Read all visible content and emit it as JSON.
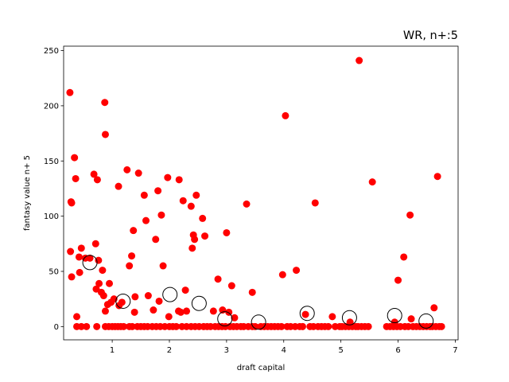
{
  "chart_data": {
    "type": "scatter",
    "title": "WR, n+:5",
    "xlabel": "draft capital",
    "ylabel": "fantasy value n+ 5",
    "xlim": [
      0.15,
      7.05
    ],
    "ylim": [
      -12,
      254
    ],
    "xticks": [
      1,
      2,
      3,
      4,
      5,
      6,
      7
    ],
    "yticks": [
      0,
      50,
      100,
      150,
      200,
      250
    ],
    "grid": false,
    "colors": {
      "points": "#ff0000",
      "means_stroke": "#000000"
    },
    "series": [
      {
        "role": "players",
        "points": [
          [
            0.26,
            212
          ],
          [
            0.28,
            113
          ],
          [
            0.29,
            112
          ],
          [
            0.27,
            68
          ],
          [
            0.29,
            45
          ],
          [
            0.34,
            153
          ],
          [
            0.36,
            134
          ],
          [
            0.38,
            9
          ],
          [
            0.42,
            63
          ],
          [
            0.43,
            49
          ],
          [
            0.46,
            71
          ],
          [
            0.53,
            62
          ],
          [
            0.61,
            62
          ],
          [
            0.68,
            138
          ],
          [
            0.71,
            75
          ],
          [
            0.74,
            133
          ],
          [
            0.76,
            60
          ],
          [
            0.77,
            39
          ],
          [
            0.72,
            34
          ],
          [
            0.81,
            31
          ],
          [
            0.83,
            51
          ],
          [
            0.85,
            28
          ],
          [
            0.87,
            203
          ],
          [
            0.88,
            174
          ],
          [
            0.88,
            14
          ],
          [
            0.92,
            20
          ],
          [
            0.95,
            39
          ],
          [
            0.98,
            22
          ],
          [
            1.03,
            25
          ],
          [
            1.11,
            127
          ],
          [
            1.12,
            19
          ],
          [
            1.17,
            22
          ],
          [
            1.26,
            142
          ],
          [
            1.3,
            55
          ],
          [
            1.34,
            64
          ],
          [
            1.37,
            87
          ],
          [
            1.39,
            13
          ],
          [
            1.4,
            27
          ],
          [
            1.46,
            139
          ],
          [
            1.56,
            119
          ],
          [
            1.59,
            96
          ],
          [
            1.63,
            28
          ],
          [
            1.72,
            15
          ],
          [
            1.76,
            79
          ],
          [
            1.8,
            123
          ],
          [
            1.82,
            23
          ],
          [
            1.86,
            101
          ],
          [
            1.89,
            55
          ],
          [
            1.97,
            135
          ],
          [
            1.99,
            9
          ],
          [
            2.16,
            14
          ],
          [
            2.17,
            133
          ],
          [
            2.2,
            13
          ],
          [
            2.24,
            114
          ],
          [
            2.28,
            33
          ],
          [
            2.3,
            14
          ],
          [
            2.38,
            109
          ],
          [
            2.4,
            71
          ],
          [
            2.42,
            83
          ],
          [
            2.44,
            79
          ],
          [
            2.47,
            119
          ],
          [
            2.58,
            98
          ],
          [
            2.62,
            82
          ],
          [
            2.77,
            14
          ],
          [
            2.85,
            43
          ],
          [
            2.93,
            15
          ],
          [
            3.0,
            85
          ],
          [
            3.04,
            13
          ],
          [
            3.09,
            37
          ],
          [
            3.14,
            8
          ],
          [
            3.35,
            111
          ],
          [
            3.45,
            31
          ],
          [
            3.98,
            47
          ],
          [
            4.03,
            191
          ],
          [
            4.22,
            51
          ],
          [
            4.38,
            11
          ],
          [
            4.55,
            112
          ],
          [
            4.85,
            9
          ],
          [
            5.16,
            4
          ],
          [
            5.32,
            241
          ],
          [
            5.55,
            131
          ],
          [
            5.94,
            4
          ],
          [
            6.0,
            42
          ],
          [
            6.1,
            63
          ],
          [
            6.21,
            101
          ],
          [
            6.23,
            7
          ],
          [
            6.63,
            17
          ],
          [
            6.69,
            136
          ],
          [
            0.38,
            0
          ],
          [
            0.46,
            0
          ],
          [
            0.55,
            0
          ],
          [
            0.73,
            0
          ],
          [
            0.88,
            0
          ],
          [
            0.94,
            0
          ],
          [
            1.0,
            0
          ],
          [
            1.05,
            0
          ],
          [
            1.1,
            0
          ],
          [
            1.15,
            0
          ],
          [
            1.2,
            0
          ],
          [
            1.3,
            0
          ],
          [
            1.35,
            0
          ],
          [
            1.44,
            0
          ],
          [
            1.5,
            0
          ],
          [
            1.56,
            0
          ],
          [
            1.62,
            0
          ],
          [
            1.7,
            0
          ],
          [
            1.77,
            0
          ],
          [
            1.84,
            0
          ],
          [
            1.92,
            0
          ],
          [
            2.0,
            0
          ],
          [
            2.06,
            0
          ],
          [
            2.12,
            0
          ],
          [
            2.22,
            0
          ],
          [
            2.3,
            0
          ],
          [
            2.38,
            0
          ],
          [
            2.45,
            0
          ],
          [
            2.52,
            0
          ],
          [
            2.6,
            0
          ],
          [
            2.66,
            0
          ],
          [
            2.72,
            0
          ],
          [
            2.8,
            0
          ],
          [
            2.86,
            0
          ],
          [
            2.92,
            0
          ],
          [
            2.98,
            0
          ],
          [
            3.06,
            0
          ],
          [
            3.12,
            0
          ],
          [
            3.18,
            0
          ],
          [
            3.25,
            0
          ],
          [
            3.3,
            0
          ],
          [
            3.38,
            0
          ],
          [
            3.45,
            0
          ],
          [
            3.5,
            0
          ],
          [
            3.6,
            0
          ],
          [
            3.66,
            0
          ],
          [
            3.72,
            0
          ],
          [
            3.78,
            0
          ],
          [
            3.84,
            0
          ],
          [
            3.9,
            0
          ],
          [
            3.96,
            0
          ],
          [
            4.06,
            0
          ],
          [
            4.12,
            0
          ],
          [
            4.2,
            0
          ],
          [
            4.28,
            0
          ],
          [
            4.33,
            0
          ],
          [
            4.46,
            0
          ],
          [
            4.52,
            0
          ],
          [
            4.6,
            0
          ],
          [
            4.66,
            0
          ],
          [
            4.72,
            0
          ],
          [
            4.78,
            0
          ],
          [
            4.9,
            0
          ],
          [
            4.98,
            0
          ],
          [
            5.02,
            0
          ],
          [
            5.08,
            0
          ],
          [
            5.14,
            0
          ],
          [
            5.2,
            0
          ],
          [
            5.26,
            0
          ],
          [
            5.3,
            0
          ],
          [
            5.36,
            0
          ],
          [
            5.42,
            0
          ],
          [
            5.48,
            0
          ],
          [
            5.8,
            0
          ],
          [
            5.86,
            0
          ],
          [
            5.92,
            0
          ],
          [
            5.98,
            0
          ],
          [
            6.04,
            0
          ],
          [
            6.12,
            0
          ],
          [
            6.18,
            0
          ],
          [
            6.26,
            0
          ],
          [
            6.32,
            0
          ],
          [
            6.38,
            0
          ],
          [
            6.44,
            0
          ],
          [
            6.5,
            0
          ],
          [
            6.56,
            0
          ],
          [
            6.6,
            0
          ],
          [
            6.66,
            0
          ],
          [
            6.72,
            0
          ],
          [
            6.76,
            0
          ]
        ]
      },
      {
        "role": "bin-means",
        "points": [
          [
            0.61,
            58
          ],
          [
            1.19,
            23
          ],
          [
            2.01,
            29
          ],
          [
            2.52,
            21
          ],
          [
            2.97,
            7
          ],
          [
            3.56,
            4
          ],
          [
            4.41,
            12
          ],
          [
            5.15,
            8
          ],
          [
            5.94,
            10
          ],
          [
            6.49,
            5
          ]
        ]
      }
    ]
  }
}
